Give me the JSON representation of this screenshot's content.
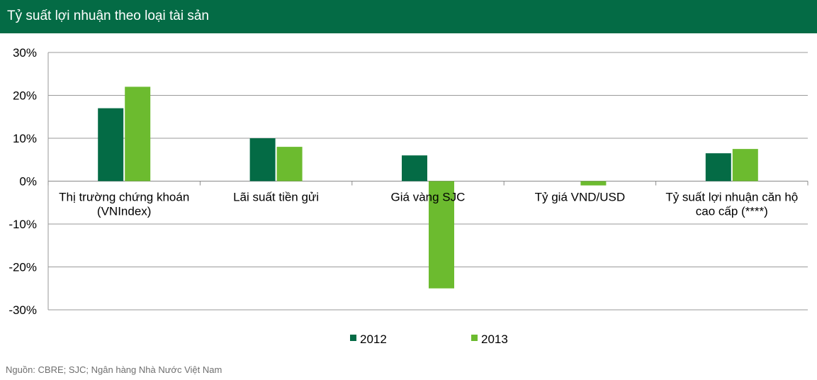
{
  "title": "Tỷ suất lợi nhuận theo loại tài sản",
  "source": "Nguồn: CBRE; SJC; Ngân hàng Nhà Nước Việt Nam",
  "chart_data": {
    "type": "bar",
    "title": "Tỷ suất lợi nhuận theo loại tài sản",
    "xlabel": "",
    "ylabel": "",
    "ylim": [
      -30,
      30
    ],
    "yticks": [
      30,
      20,
      10,
      0,
      -10,
      -20,
      -30
    ],
    "ytick_labels": [
      "30%",
      "20%",
      "10%",
      "0%",
      "-10%",
      "-20%",
      "-30%"
    ],
    "categories": [
      [
        "Thị trường chứng khoán",
        "(VNIndex)"
      ],
      [
        "Lãi suất tiền gửi"
      ],
      [
        "Giá vàng SJC"
      ],
      [
        "Tỷ giá VND/USD"
      ],
      [
        "Tỷ suất lợi nhuận căn hộ",
        "cao cấp (****)"
      ]
    ],
    "series": [
      {
        "name": "2012",
        "color": "#046b45",
        "values": [
          17,
          10,
          6,
          0,
          6.5
        ]
      },
      {
        "name": "2013",
        "color": "#6cbb2f",
        "values": [
          22,
          8,
          -25,
          -1,
          7.5
        ]
      }
    ],
    "grid": true,
    "legend_position": "bottom"
  }
}
